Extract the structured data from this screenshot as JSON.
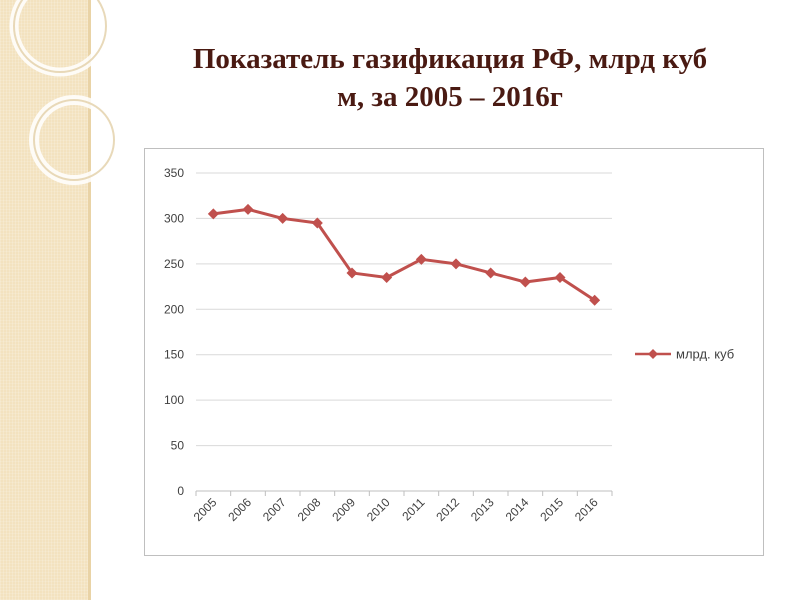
{
  "slide": {
    "title_line1": "Показатель газификация РФ, млрд куб",
    "title_line2": "м, за 2005 – 2016г"
  },
  "colors": {
    "series": "#c0504d",
    "band": "#f3e2bf",
    "title": "#4a1a12",
    "grid": "#d9d9d9"
  },
  "chart_data": {
    "type": "line",
    "title": "Показатель газификация РФ, млрд куб м, за 2005 – 2016г",
    "xlabel": "",
    "ylabel": "",
    "categories": [
      "2005",
      "2006",
      "2007",
      "2008",
      "2009",
      "2010",
      "2011",
      "2012",
      "2013",
      "2014",
      "2015",
      "2016"
    ],
    "series": [
      {
        "name": "млрд. куб",
        "values": [
          305,
          310,
          300,
          295,
          240,
          235,
          255,
          250,
          240,
          230,
          235,
          210
        ]
      }
    ],
    "ylim": [
      0,
      350
    ],
    "yticks": [
      0,
      50,
      100,
      150,
      200,
      250,
      300,
      350
    ],
    "yticks_labels": [
      "0",
      "50",
      "100",
      "150",
      "200",
      "250",
      "300",
      "350"
    ],
    "grid": true,
    "legend_position": "right",
    "marker": "diamond"
  }
}
